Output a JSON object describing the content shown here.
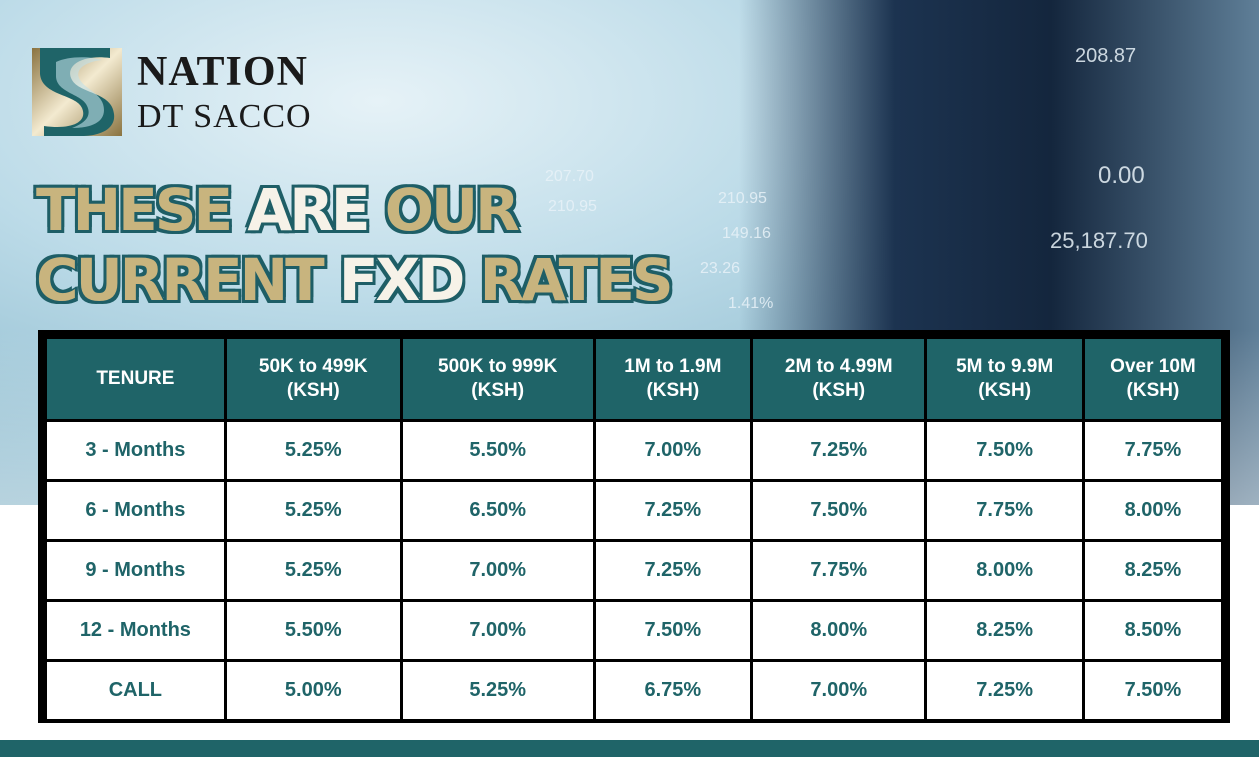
{
  "brand": {
    "line1": "NATION",
    "line2": "DT SACCO"
  },
  "headline": {
    "line1_a": "THESE ",
    "line1_b": "ARE ",
    "line1_c": "OUR",
    "line2_a": "CURRENT ",
    "line2_b": "FXD ",
    "line2_c": "RATES"
  },
  "background_numbers": [
    "208.87",
    "0.00",
    "25,187.70",
    "210.95",
    "149.16",
    "23.26",
    "1.41%",
    "207.70",
    "210.95"
  ],
  "colors": {
    "teal": "#1f6468",
    "gold": "#c8b47e"
  },
  "table": {
    "headers": [
      "TENURE",
      "50K to 499K\n(KSH)",
      "500K to 999K\n(KSH)",
      "1M to 1.9M\n(KSH)",
      "2M to 4.99M\n(KSH)",
      "5M to 9.9M\n(KSH)",
      "Over 10M\n(KSH)"
    ],
    "header_lines": [
      [
        "TENURE",
        ""
      ],
      [
        "50K to 499K",
        "(KSH)"
      ],
      [
        "500K to 999K",
        "(KSH)"
      ],
      [
        "1M to 1.9M",
        "(KSH)"
      ],
      [
        "2M to 4.99M",
        "(KSH)"
      ],
      [
        "5M to 9.9M",
        "(KSH)"
      ],
      [
        "Over 10M",
        "(KSH)"
      ]
    ],
    "rows": [
      [
        "3 - Months",
        "5.25%",
        "5.50%",
        "7.00%",
        "7.25%",
        "7.50%",
        "7.75%"
      ],
      [
        "6 - Months",
        "5.25%",
        "6.50%",
        "7.25%",
        "7.50%",
        "7.75%",
        "8.00%"
      ],
      [
        "9 - Months",
        "5.25%",
        "7.00%",
        "7.25%",
        "7.75%",
        "8.00%",
        "8.25%"
      ],
      [
        "12 - Months",
        "5.50%",
        "7.00%",
        "7.50%",
        "8.00%",
        "8.25%",
        "8.50%"
      ],
      [
        "CALL",
        "5.00%",
        "5.25%",
        "6.75%",
        "7.00%",
        "7.25%",
        "7.50%"
      ]
    ]
  }
}
